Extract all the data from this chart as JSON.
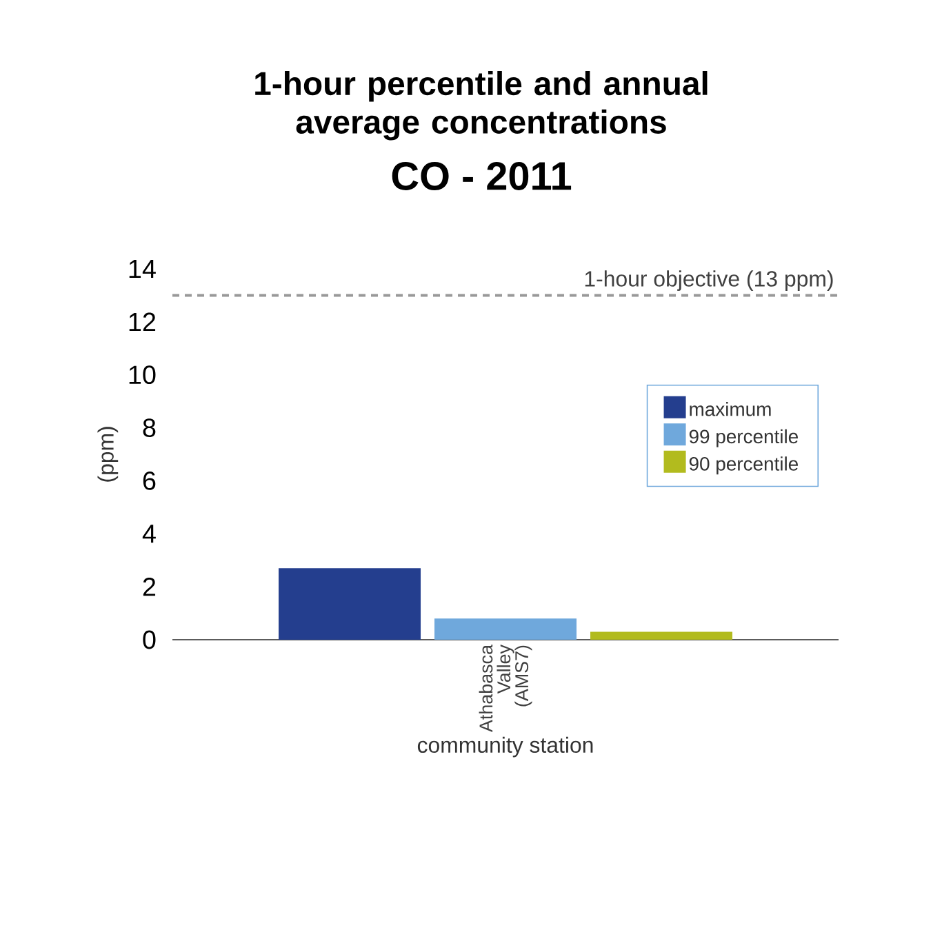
{
  "chart_data": {
    "type": "bar",
    "title": "1-hour percentile and annual average concentrations",
    "subtitle": "CO - 2011",
    "ylabel": "(ppm)",
    "xlabel": "community station",
    "categories": [
      "Athabasca Valley (AMS7)"
    ],
    "series": [
      {
        "name": "maximum",
        "color": "#243e8e",
        "values": [
          2.7
        ]
      },
      {
        "name": "99 percentile",
        "color": "#6fa8dc",
        "values": [
          0.8
        ]
      },
      {
        "name": "90 percentile",
        "color": "#b2bb1e",
        "values": [
          0.3
        ]
      }
    ],
    "ylim": [
      0,
      14
    ],
    "yticks": [
      0,
      2,
      4,
      6,
      8,
      10,
      12,
      14
    ],
    "ref_lines": [
      {
        "axis": "y",
        "value": 13,
        "label": "1-hour objective (13 ppm)",
        "color": "#999999",
        "line_style": "dashed"
      }
    ],
    "legend": "right",
    "grid": false
  }
}
